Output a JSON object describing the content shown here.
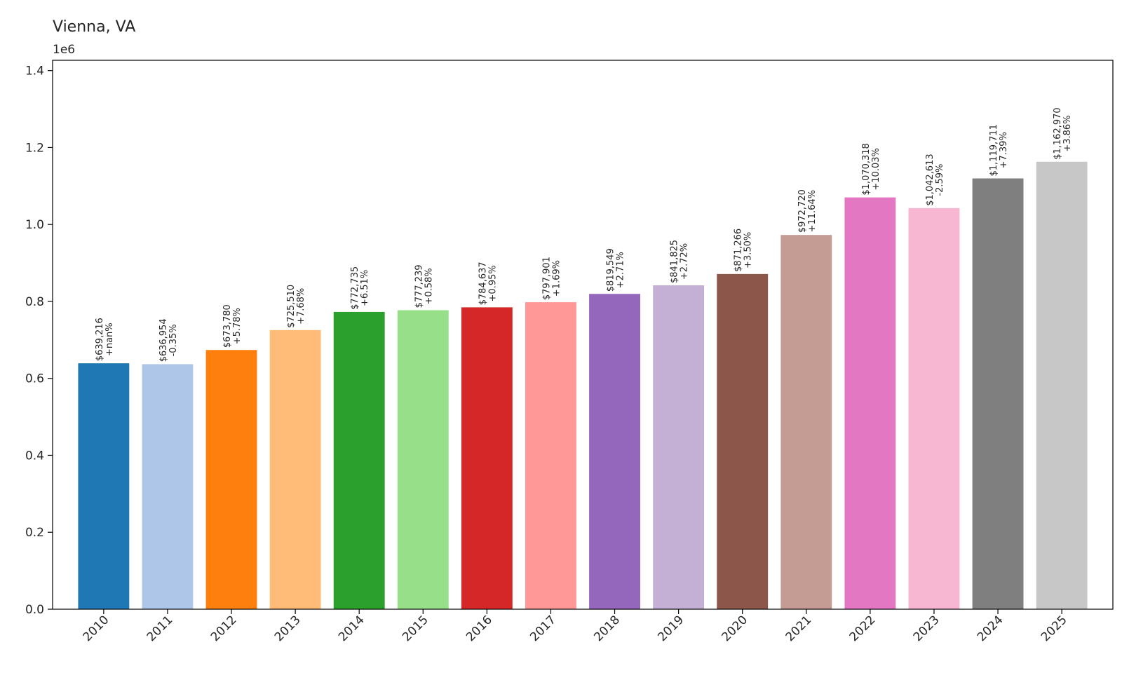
{
  "chart_data": {
    "type": "bar",
    "title": "Vienna, VA",
    "xlabel": "",
    "ylabel": "",
    "y_offset_label": "1e6",
    "ylim": [
      0,
      1.4
    ],
    "yticks": [
      "0.0",
      "0.2",
      "0.4",
      "0.6",
      "0.8",
      "1.0",
      "1.2",
      "1.4"
    ],
    "grid": false,
    "categories": [
      "2010",
      "2011",
      "2012",
      "2013",
      "2014",
      "2015",
      "2016",
      "2017",
      "2018",
      "2019",
      "2020",
      "2021",
      "2022",
      "2023",
      "2024",
      "2025"
    ],
    "values": [
      639216,
      636954,
      673780,
      725510,
      772735,
      777239,
      784637,
      797901,
      819549,
      841825,
      871266,
      972720,
      1070318,
      1042613,
      1119711,
      1162970
    ],
    "value_labels": [
      "$639,216",
      "$636,954",
      "$673,780",
      "$725,510",
      "$772,735",
      "$777,239",
      "$784,637",
      "$797,901",
      "$819,549",
      "$841,825",
      "$871,266",
      "$972,720",
      "$1,070,318",
      "$1,042,613",
      "$1,119,711",
      "$1,162,970"
    ],
    "change_labels": [
      "+nan%",
      "-0.35%",
      "+5.78%",
      "+7.68%",
      "+6.51%",
      "+0.58%",
      "+0.95%",
      "+1.69%",
      "+2.71%",
      "+2.72%",
      "+3.50%",
      "+11.64%",
      "+10.03%",
      "-2.59%",
      "+7.39%",
      "+3.86%"
    ],
    "colors": [
      "#1f77b4",
      "#aec7e8",
      "#ff7f0e",
      "#ffbb78",
      "#2ca02c",
      "#98df8a",
      "#d62728",
      "#ff9896",
      "#9467bd",
      "#c5b0d5",
      "#8c564b",
      "#c49c94",
      "#e377c2",
      "#f7b6d2",
      "#7f7f7f",
      "#c7c7c7"
    ]
  }
}
